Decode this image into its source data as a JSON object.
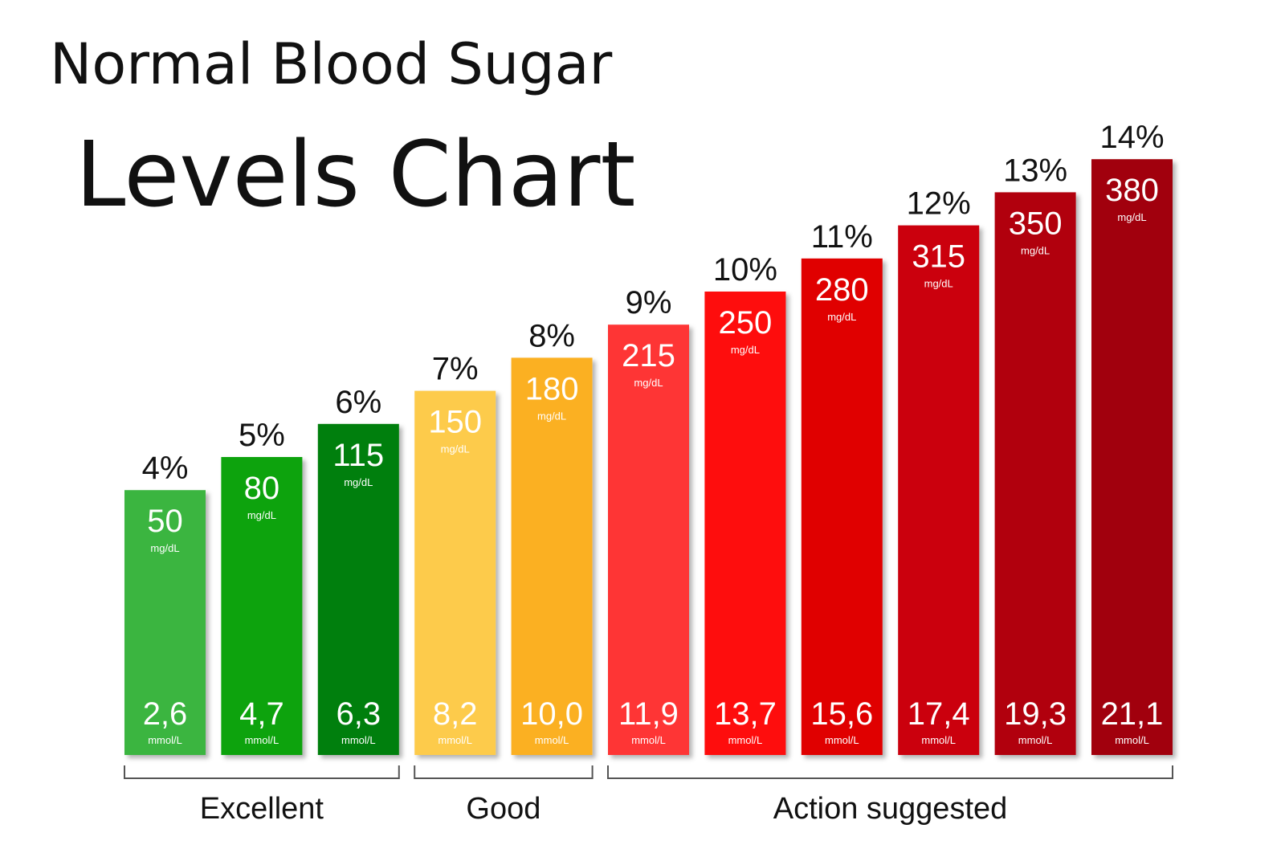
{
  "chart_data": {
    "type": "bar",
    "title": "Normal Blood Sugar",
    "subtitle": "Levels Chart",
    "values": [
      4,
      5,
      6,
      7,
      8,
      9,
      10,
      11,
      12,
      13,
      14
    ],
    "value_labels": [
      "4%",
      "5%",
      "6%",
      "7%",
      "8%",
      "9%",
      "10%",
      "11%",
      "12%",
      "13%",
      "14%"
    ],
    "colors": [
      "#3bb53f",
      "#0aa30a",
      "#067f0a",
      "#fdcb4c",
      "#fbb021",
      "#fe3535",
      "#fe0808",
      "#e00303",
      "#cb0510",
      "#b1000c",
      "#a10008"
    ],
    "mg_dl": {
      "unit": "mg/dL",
      "values": [
        50,
        80,
        115,
        150,
        180,
        215,
        250,
        280,
        315,
        350,
        380
      ]
    },
    "mmol_l": {
      "unit": "mmol/L",
      "values": [
        2.6,
        4.7,
        6.3,
        8.2,
        10.0,
        11.9,
        13.7,
        15.6,
        17.4,
        19.3,
        21.1
      ],
      "value_labels": [
        "2,6",
        "4,7",
        "6,3",
        "8,2",
        "10,0",
        "11,9",
        "13,7",
        "15,6",
        "17,4",
        "19,3",
        "21,1"
      ]
    },
    "groups": [
      {
        "name": "Excellent",
        "count": 3
      },
      {
        "name": "Good",
        "count": 2
      },
      {
        "name": "Action suggested",
        "count": 6
      }
    ]
  }
}
